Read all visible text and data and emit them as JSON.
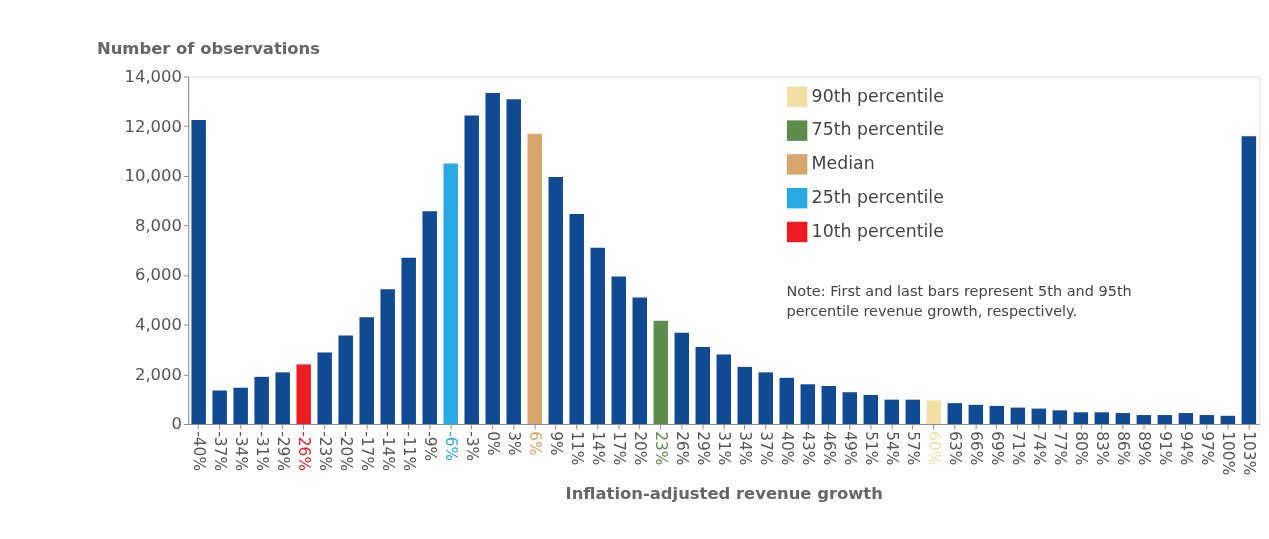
{
  "chart_data": {
    "type": "bar",
    "ylabel": "Number of observations",
    "xlabel": "Inflation-adjusted revenue growth",
    "categories": [
      "-40%",
      "-37%",
      "-34%",
      "-31%",
      "-29%",
      "-26%",
      "-23%",
      "-20%",
      "-17%",
      "-14%",
      "-11%",
      "-9%",
      "-6%",
      "-3%",
      "0%",
      "3%",
      "6%",
      "9%",
      "11%",
      "14%",
      "17%",
      "20%",
      "23%",
      "26%",
      "29%",
      "31%",
      "34%",
      "37%",
      "40%",
      "43%",
      "46%",
      "49%",
      "51%",
      "54%",
      "57%",
      "60%",
      "63%",
      "66%",
      "69%",
      "71%",
      "74%",
      "77%",
      "80%",
      "83%",
      "86%",
      "89%",
      "91%",
      "94%",
      "97%",
      "100%",
      "103%"
    ],
    "series": [
      {
        "color": "#0f4a92",
        "values": [
          12250,
          1350,
          1460,
          1900,
          2080,
          null,
          2880,
          3570,
          4300,
          5430,
          6700,
          8570,
          null,
          12430,
          13340,
          13090,
          null,
          9950,
          8460,
          7100,
          5940,
          5100,
          null,
          3680,
          3100,
          2800,
          2300,
          2080,
          1860,
          1600,
          1530,
          1280,
          1170,
          980,
          980,
          null,
          840,
          770,
          730,
          660,
          620,
          550,
          470,
          470,
          440,
          360,
          360,
          440,
          360,
          330,
          11600
        ]
      },
      {
        "name": "90th percentile",
        "color": "#f3dea6",
        "values": [
          null,
          null,
          null,
          null,
          null,
          null,
          null,
          null,
          null,
          null,
          null,
          null,
          null,
          null,
          null,
          null,
          null,
          null,
          null,
          null,
          null,
          null,
          null,
          null,
          null,
          null,
          null,
          null,
          null,
          null,
          null,
          null,
          null,
          null,
          null,
          950,
          null,
          null,
          null,
          null,
          null,
          null,
          null,
          null,
          null,
          null,
          null,
          null,
          null,
          null,
          null
        ]
      },
      {
        "name": "75th percentile",
        "color": "#5e8c4b",
        "values": [
          null,
          null,
          null,
          null,
          null,
          null,
          null,
          null,
          null,
          null,
          null,
          null,
          null,
          null,
          null,
          null,
          null,
          null,
          null,
          null,
          null,
          null,
          4160,
          null,
          null,
          null,
          null,
          null,
          null,
          null,
          null,
          null,
          null,
          null,
          null,
          null,
          null,
          null,
          null,
          null,
          null,
          null,
          null,
          null,
          null,
          null,
          null,
          null,
          null,
          null,
          null
        ]
      },
      {
        "name": "Median",
        "color": "#d8a66c",
        "values": [
          null,
          null,
          null,
          null,
          null,
          null,
          null,
          null,
          null,
          null,
          null,
          null,
          null,
          null,
          null,
          null,
          11700,
          null,
          null,
          null,
          null,
          null,
          null,
          null,
          null,
          null,
          null,
          null,
          null,
          null,
          null,
          null,
          null,
          null,
          null,
          null,
          null,
          null,
          null,
          null,
          null,
          null,
          null,
          null,
          null,
          null,
          null,
          null,
          null,
          null,
          null
        ]
      },
      {
        "name": "25th percentile",
        "color": "#27aae1",
        "values": [
          null,
          null,
          null,
          null,
          null,
          null,
          null,
          null,
          null,
          null,
          null,
          null,
          10500,
          null,
          null,
          null,
          null,
          null,
          null,
          null,
          null,
          null,
          null,
          null,
          null,
          null,
          null,
          null,
          null,
          null,
          null,
          null,
          null,
          null,
          null,
          null,
          null,
          null,
          null,
          null,
          null,
          null,
          null,
          null,
          null,
          null,
          null,
          null,
          null,
          null,
          null
        ]
      },
      {
        "name": "10th percentile",
        "color": "#ed1c24",
        "values": [
          null,
          null,
          null,
          null,
          null,
          2400,
          null,
          null,
          null,
          null,
          null,
          null,
          null,
          null,
          null,
          null,
          null,
          null,
          null,
          null,
          null,
          null,
          null,
          null,
          null,
          null,
          null,
          null,
          null,
          null,
          null,
          null,
          null,
          null,
          null,
          null,
          null,
          null,
          null,
          null,
          null,
          null,
          null,
          null,
          null,
          null,
          null,
          null,
          null,
          null,
          null
        ]
      }
    ],
    "ylim": [
      0,
      14000
    ],
    "yticks": [
      0,
      {
        "value": 2000,
        "label": "2,000"
      },
      {
        "value": 4000,
        "label": "4,000"
      },
      {
        "value": 6000,
        "label": "6,000"
      },
      {
        "value": 8000,
        "label": "8,000"
      },
      {
        "value": 10000,
        "label": "10,000"
      },
      {
        "value": 12000,
        "label": "12,000"
      },
      {
        "value": 14000,
        "label": "14,000"
      }
    ],
    "grid": false,
    "legend": "top right",
    "annotations": [
      "Note: First and last bars represent 5th and 95th percentile revenue growth, respectively."
    ]
  }
}
